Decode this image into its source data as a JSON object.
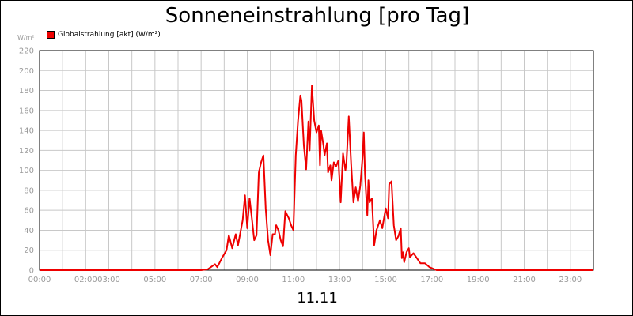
{
  "chart_data": {
    "type": "line",
    "title": "Sonneneinstrahlung [pro Tag]",
    "ylabel": "W/m²",
    "xlabel": "11.11",
    "ylim": [
      0,
      220
    ],
    "xlim_hours": [
      0,
      24
    ],
    "yticks": [
      0,
      20,
      40,
      60,
      80,
      100,
      120,
      140,
      160,
      180,
      200,
      220
    ],
    "xticks": [
      {
        "h": 0,
        "label": "00:00"
      },
      {
        "h": 2,
        "label": "02:00"
      },
      {
        "h": 3,
        "label": "03:00"
      },
      {
        "h": 5,
        "label": "05:00"
      },
      {
        "h": 7,
        "label": "07:00"
      },
      {
        "h": 9,
        "label": "09:00"
      },
      {
        "h": 11,
        "label": "11:00"
      },
      {
        "h": 13,
        "label": "13:00"
      },
      {
        "h": 15,
        "label": "15:00"
      },
      {
        "h": 17,
        "label": "17:00"
      },
      {
        "h": 19,
        "label": "19:00"
      },
      {
        "h": 21,
        "label": "21:00"
      },
      {
        "h": 23,
        "label": "23:00"
      }
    ],
    "grid": true,
    "legend_position": "top-left",
    "series": [
      {
        "name": "Globalstrahlung [akt] (W/m²)",
        "color": "#ee0000",
        "points": [
          [
            0,
            0
          ],
          [
            7.0,
            0
          ],
          [
            7.3,
            1
          ],
          [
            7.6,
            6
          ],
          [
            7.7,
            3
          ],
          [
            7.9,
            12
          ],
          [
            8.1,
            20
          ],
          [
            8.2,
            35
          ],
          [
            8.35,
            22
          ],
          [
            8.5,
            36
          ],
          [
            8.6,
            25
          ],
          [
            8.8,
            50
          ],
          [
            8.9,
            75
          ],
          [
            9.0,
            42
          ],
          [
            9.1,
            72
          ],
          [
            9.2,
            52
          ],
          [
            9.3,
            30
          ],
          [
            9.4,
            35
          ],
          [
            9.5,
            98
          ],
          [
            9.6,
            108
          ],
          [
            9.7,
            115
          ],
          [
            9.8,
            62
          ],
          [
            9.9,
            30
          ],
          [
            10.0,
            15
          ],
          [
            10.1,
            36
          ],
          [
            10.2,
            36
          ],
          [
            10.25,
            45
          ],
          [
            10.35,
            40
          ],
          [
            10.45,
            30
          ],
          [
            10.55,
            24
          ],
          [
            10.65,
            59
          ],
          [
            10.8,
            52
          ],
          [
            10.9,
            45
          ],
          [
            11.0,
            40
          ],
          [
            11.1,
            115
          ],
          [
            11.2,
            150
          ],
          [
            11.3,
            175
          ],
          [
            11.35,
            170
          ],
          [
            11.45,
            125
          ],
          [
            11.55,
            101
          ],
          [
            11.65,
            149
          ],
          [
            11.7,
            120
          ],
          [
            11.8,
            185
          ],
          [
            11.9,
            150
          ],
          [
            12.0,
            138
          ],
          [
            12.1,
            145
          ],
          [
            12.15,
            105
          ],
          [
            12.2,
            140
          ],
          [
            12.3,
            125
          ],
          [
            12.35,
            115
          ],
          [
            12.45,
            127
          ],
          [
            12.5,
            98
          ],
          [
            12.6,
            105
          ],
          [
            12.65,
            90
          ],
          [
            12.75,
            108
          ],
          [
            12.85,
            104
          ],
          [
            12.95,
            110
          ],
          [
            13.05,
            68
          ],
          [
            13.15,
            117
          ],
          [
            13.25,
            100
          ],
          [
            13.3,
            108
          ],
          [
            13.4,
            154
          ],
          [
            13.5,
            106
          ],
          [
            13.6,
            68
          ],
          [
            13.7,
            83
          ],
          [
            13.8,
            69
          ],
          [
            13.9,
            85
          ],
          [
            14.0,
            114
          ],
          [
            14.05,
            138
          ],
          [
            14.1,
            96
          ],
          [
            14.2,
            55
          ],
          [
            14.25,
            90
          ],
          [
            14.3,
            68
          ],
          [
            14.4,
            72
          ],
          [
            14.5,
            25
          ],
          [
            14.6,
            40
          ],
          [
            14.75,
            50
          ],
          [
            14.85,
            42
          ],
          [
            15.0,
            62
          ],
          [
            15.1,
            52
          ],
          [
            15.15,
            86
          ],
          [
            15.25,
            89
          ],
          [
            15.35,
            45
          ],
          [
            15.45,
            30
          ],
          [
            15.55,
            34
          ],
          [
            15.65,
            42
          ],
          [
            15.7,
            12
          ],
          [
            15.75,
            18
          ],
          [
            15.8,
            8
          ],
          [
            15.9,
            18
          ],
          [
            16.0,
            22
          ],
          [
            16.05,
            13
          ],
          [
            16.2,
            17
          ],
          [
            16.35,
            12
          ],
          [
            16.5,
            7
          ],
          [
            16.7,
            7
          ],
          [
            16.9,
            3
          ],
          [
            17.2,
            0
          ],
          [
            24.0,
            0
          ]
        ]
      }
    ]
  }
}
